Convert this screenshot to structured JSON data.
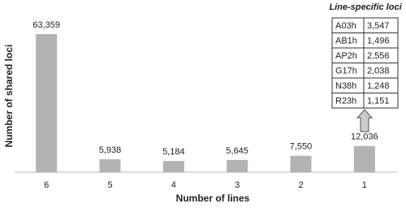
{
  "chart_data": {
    "type": "bar",
    "x_label": "Number of lines",
    "y_label": "Number of shared loci",
    "categories": [
      "6",
      "5",
      "4",
      "3",
      "2",
      "1"
    ],
    "values": [
      63359,
      5938,
      5184,
      5645,
      7550,
      12036
    ],
    "value_labels": [
      "63,359",
      "5,938",
      "5,184",
      "5,645",
      "7,550",
      "12,036"
    ],
    "color": "#b3b3b3",
    "inset_table": {
      "title": "Line-specific loci",
      "rows": [
        [
          "A03h",
          "3,547"
        ],
        [
          "AB1h",
          "1,496"
        ],
        [
          "AP2h",
          "2,556"
        ],
        [
          "G17h",
          "2,038"
        ],
        [
          "N38h",
          "1,248"
        ],
        [
          "R23h",
          "1,151"
        ]
      ]
    }
  }
}
